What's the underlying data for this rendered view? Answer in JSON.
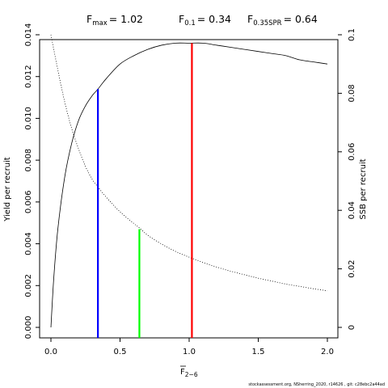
{
  "chart_data": {
    "type": "line",
    "title_parts": [
      {
        "main": "F",
        "sub": "max",
        "value": "= 1.02"
      },
      {
        "main": "F",
        "sub": "0.1",
        "value": "= 0.34"
      },
      {
        "main": "F",
        "sub": "0.35SPR",
        "value": "= 0.64"
      }
    ],
    "xlabel": {
      "main": "F",
      "sub": "2−6"
    },
    "ylabel": "Yield per recruit",
    "y2label": "SSB per recruit",
    "xlim": [
      0,
      2
    ],
    "ylim": [
      0,
      0.014
    ],
    "y2lim": [
      0,
      0.1
    ],
    "x_ticks": [
      "0.0",
      "0.5",
      "1.0",
      "1.5",
      "2.0"
    ],
    "x_tick_values": [
      0,
      0.5,
      1.0,
      1.5,
      2.0
    ],
    "y_ticks": [
      "0.000",
      "0.002",
      "0.004",
      "0.006",
      "0.008",
      "0.010",
      "0.012",
      "0.014"
    ],
    "y_tick_values": [
      0,
      0.002,
      0.004,
      0.006,
      0.008,
      0.01,
      0.012,
      0.014
    ],
    "y2_ticks": [
      "0",
      "0.02",
      "0.04",
      "0.06",
      "0.08",
      "0.1"
    ],
    "y2_tick_values": [
      0,
      0.02,
      0.04,
      0.06,
      0.08,
      0.1
    ],
    "series": [
      {
        "line_style": "solid",
        "axis": "left",
        "x": [
          0,
          0.02,
          0.05,
          0.1,
          0.15,
          0.2,
          0.25,
          0.3,
          0.34,
          0.4,
          0.5,
          0.6,
          0.7,
          0.8,
          0.9,
          1.0,
          1.1,
          1.2,
          1.3,
          1.4,
          1.5,
          1.6,
          1.7,
          1.8,
          1.9,
          2.0
        ],
        "y": [
          0,
          0.0023,
          0.0047,
          0.0072,
          0.0088,
          0.0099,
          0.0106,
          0.0111,
          0.0114,
          0.0119,
          0.0126,
          0.013,
          0.0133,
          0.0135,
          0.0136,
          0.0136,
          0.0136,
          0.0135,
          0.0134,
          0.0133,
          0.0132,
          0.0131,
          0.013,
          0.0128,
          0.0127,
          0.0126
        ]
      },
      {
        "line_style": "dotted",
        "axis": "right",
        "x": [
          0,
          0.05,
          0.1,
          0.15,
          0.2,
          0.25,
          0.3,
          0.34,
          0.4,
          0.5,
          0.6,
          0.64,
          0.7,
          0.8,
          0.9,
          1.0,
          1.1,
          1.2,
          1.3,
          1.4,
          1.5,
          1.6,
          1.7,
          1.8,
          1.9,
          2.0
        ],
        "y": [
          0.1,
          0.088,
          0.077,
          0.068,
          0.061,
          0.055,
          0.0505,
          0.048,
          0.0445,
          0.0395,
          0.0355,
          0.034,
          0.0315,
          0.0285,
          0.026,
          0.024,
          0.0222,
          0.0206,
          0.0192,
          0.018,
          0.0168,
          0.0158,
          0.0148,
          0.014,
          0.0132,
          0.0125
        ]
      }
    ],
    "reference_lines": [
      {
        "x": 0.34,
        "top_value": 0.0114,
        "color": "#0000ff"
      },
      {
        "x": 0.64,
        "top_value": 0.0047,
        "color": "#00ff00"
      },
      {
        "x": 1.02,
        "top_value": 0.0136,
        "color": "#ff0000"
      }
    ]
  },
  "footer": "stockassessment.org, NSherring_2020, r14626 , git: c28ebc2a44ad"
}
